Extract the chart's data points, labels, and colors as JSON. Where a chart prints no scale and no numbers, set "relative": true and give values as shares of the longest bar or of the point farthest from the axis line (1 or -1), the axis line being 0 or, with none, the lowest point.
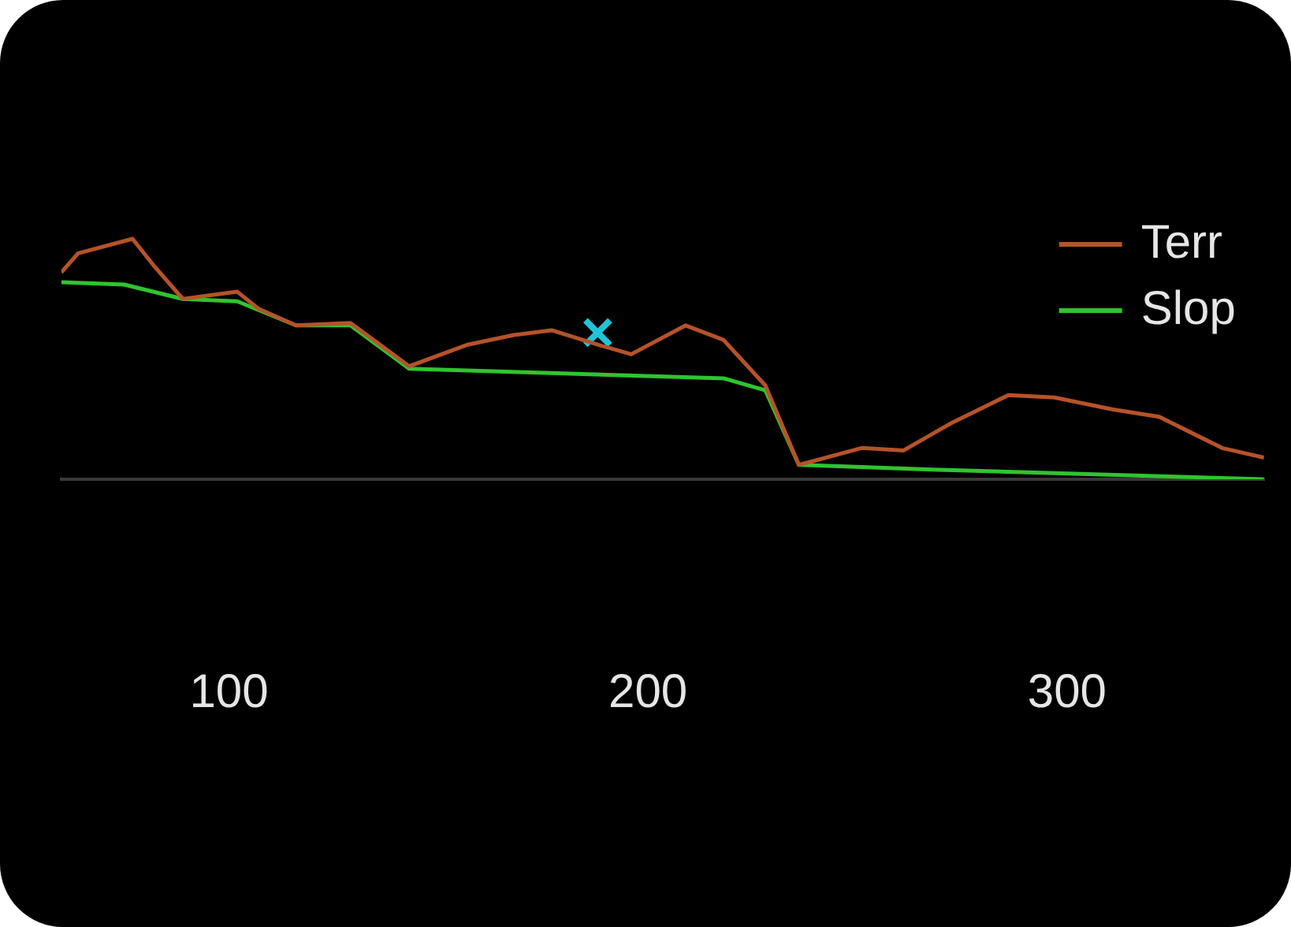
{
  "chart_data": {
    "type": "line",
    "relative": true,
    "xlim": [
      60,
      347
    ],
    "xticks": [
      100,
      200,
      300
    ],
    "tick_labels": "x",
    "grid": false,
    "legend": "top right",
    "marker": "none",
    "line_style": "solid",
    "series": [
      {
        "name": "Terr",
        "color": "#b5532a",
        "x": [
          60,
          64,
          77,
          82,
          89,
          102,
          107,
          116,
          129,
          143,
          157,
          168,
          177,
          188,
          196,
          209,
          218,
          228,
          236,
          251,
          261,
          272,
          286,
          297,
          311,
          322,
          337,
          347
        ],
        "values": [
          0.86,
          0.94,
          1,
          0.89,
          0.75,
          0.78,
          0.71,
          0.64,
          0.65,
          0.47,
          0.56,
          0.6,
          0.62,
          0.56,
          0.52,
          0.64,
          0.58,
          0.39,
          0.06,
          0.13,
          0.12,
          0.23,
          0.35,
          0.34,
          0.29,
          0.26,
          0.13,
          0.09
        ]
      },
      {
        "name": "Slop",
        "color": "#2fc42f",
        "x": [
          60,
          75,
          89,
          102,
          116,
          129,
          143,
          218,
          228,
          236,
          268,
          347
        ],
        "values": [
          0.82,
          0.81,
          0.75,
          0.74,
          0.64,
          0.64,
          0.46,
          0.42,
          0.37,
          0.06,
          0.04,
          0
        ]
      },
      {
        "type": "scatter",
        "color": "#22c4d8",
        "marker": "cross",
        "x": [
          188
        ],
        "values": [
          0.61
        ]
      }
    ]
  }
}
